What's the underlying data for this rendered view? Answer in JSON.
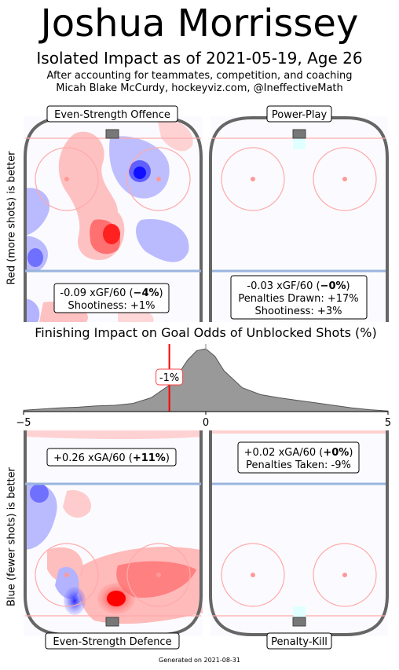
{
  "header": {
    "title": "Joshua Morrissey",
    "subtitle": "Isolated Impact as of 2021-05-19, Age 26",
    "note_line1": "After accounting for teammates, competition, and coaching",
    "note_line2": "Micah Blake McCurdy, hockeyviz.com, @IneffectiveMath"
  },
  "axis_labels": {
    "top": "Red (more shots) is better",
    "bottom": "Blue (fewer shots) is better"
  },
  "panels": {
    "es_offence": {
      "title": "Even-Strength Offence",
      "line1_pre": "-0.09 xGF/60 (",
      "line1_bold": "−4%",
      "line1_post": ")",
      "line2": "Shootiness: +1%"
    },
    "power_play": {
      "title": "Power-Play",
      "line1_pre": "-0.03 xGF/60 (",
      "line1_bold": "−0%",
      "line1_post": ")",
      "line2": "Penalties Drawn: +17%",
      "line3": "Shootiness: +3%"
    },
    "es_defence": {
      "title": "Even-Strength Defence",
      "line1_pre": "+0.26 xGA/60 (",
      "line1_bold": "+11%",
      "line1_post": ")"
    },
    "penalty_kill": {
      "title": "Penalty-Kill",
      "line1_pre": "+0.02 xGA/60 (",
      "line1_bold": "+0%",
      "line1_post": ")",
      "line2": "Penalties Taken: -9%"
    }
  },
  "footer": {
    "generated": "Generated on 2021-08-31"
  },
  "colors": {
    "red": "#ff0000",
    "blue": "#0000ff",
    "rink": "#666666",
    "density": "#999999"
  },
  "chart_data": {
    "type": "area",
    "title": "Finishing Impact on Goal Odds of Unblocked Shots (%)",
    "xlim": [
      -5,
      5
    ],
    "x_ticks": [
      "−5",
      "0",
      "5"
    ],
    "marker": {
      "value": -1,
      "label": "-1%"
    },
    "density": {
      "x": [
        -5,
        -4.5,
        -4,
        -3.5,
        -3,
        -2.5,
        -2,
        -1.5,
        -1,
        -0.75,
        -0.5,
        -0.25,
        0,
        0.25,
        0.5,
        1,
        1.5,
        2,
        2.5,
        3,
        3.5,
        4,
        4.5,
        5
      ],
      "y": [
        0.02,
        0.04,
        0.06,
        0.07,
        0.09,
        0.1,
        0.13,
        0.22,
        0.42,
        0.6,
        0.82,
        0.97,
        1.0,
        0.88,
        0.65,
        0.38,
        0.27,
        0.22,
        0.18,
        0.14,
        0.1,
        0.06,
        0.03,
        0.01
      ]
    }
  }
}
